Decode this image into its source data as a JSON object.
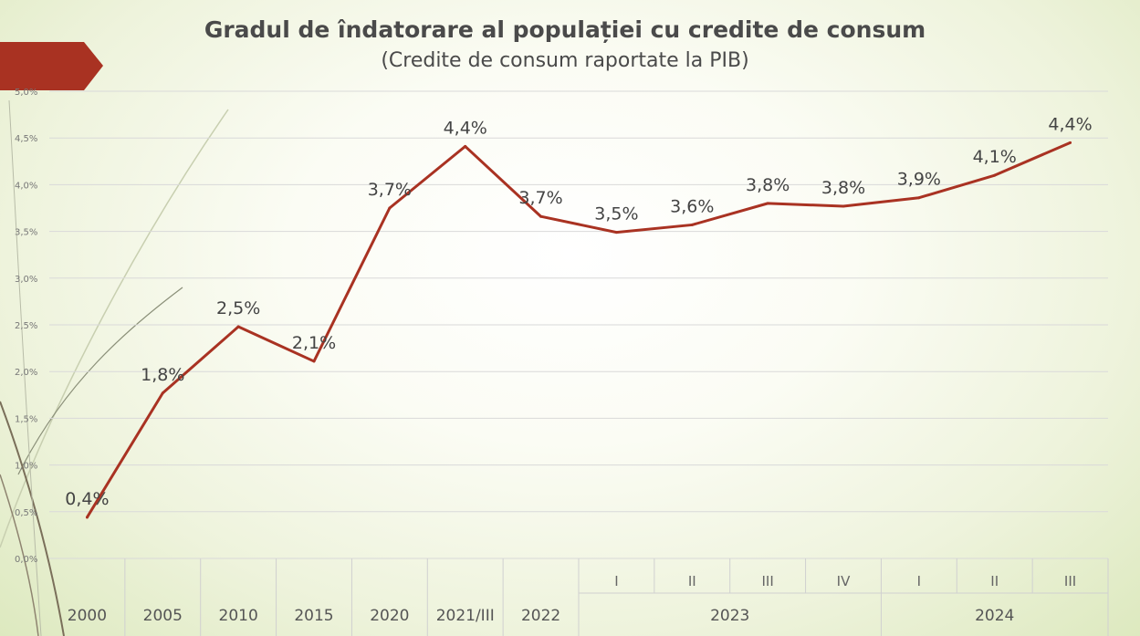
{
  "title": "Gradul de îndatorare al populației cu credite de consum",
  "subtitle": "(Credite de consum raportate la PIB)",
  "colors": {
    "line": "#a93222",
    "accent_arrow": "#a93222",
    "grid": "#d9d9d9"
  },
  "chart_data": {
    "type": "line",
    "title": "Gradul de îndatorare al populației cu credite de consum",
    "subtitle": "(Credite de consum raportate la PIB)",
    "xlabel": "",
    "ylabel": "",
    "ylim": [
      0,
      5
    ],
    "grid": true,
    "yticks": [
      "0,0%",
      "0,5%",
      "1,0%",
      "1,5%",
      "2,0%",
      "2,5%",
      "3,0%",
      "3,5%",
      "4,0%",
      "4,5%",
      "5,0%"
    ],
    "categories": [
      "2000",
      "2005",
      "2010",
      "2015",
      "2020",
      "2021/III",
      "2022",
      "I",
      "II",
      "III",
      "IV",
      "I",
      "II",
      "III"
    ],
    "groups": [
      {
        "label": "2023",
        "start": 7,
        "end": 10
      },
      {
        "label": "2024",
        "start": 11,
        "end": 13
      }
    ],
    "series": [
      {
        "values": [
          0.44,
          1.77,
          2.48,
          2.11,
          3.75,
          4.41,
          3.66,
          3.49,
          3.57,
          3.8,
          3.77,
          3.86,
          4.1,
          4.45
        ],
        "labels": [
          "0,4%",
          "1,8%",
          "2,5%",
          "2,1%",
          "3,7%",
          "4,4%",
          "3,7%",
          "3,5%",
          "3,6%",
          "3,8%",
          "3,8%",
          "3,9%",
          "4,1%",
          "4,4%"
        ]
      }
    ]
  }
}
